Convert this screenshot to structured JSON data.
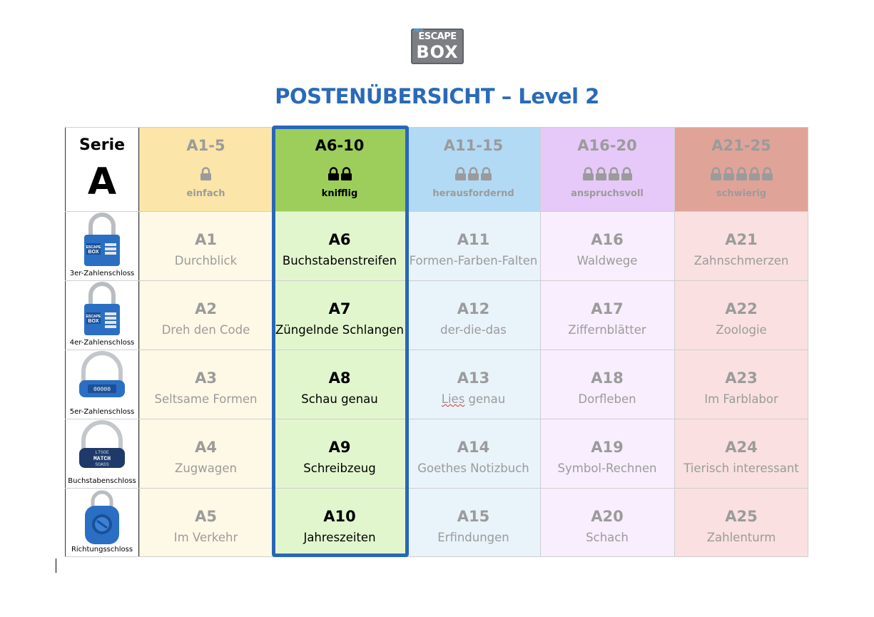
{
  "logo": {
    "my": "my",
    "top": "ESCAPE",
    "bottom": "BOX"
  },
  "title": "POSTENÜBERSICHT – Level 2",
  "serie": {
    "label": "Serie",
    "letter": "A"
  },
  "columns": [
    {
      "range": "A1-5",
      "locks": 1,
      "difficulty": "einfach",
      "header_color": "#fbe5a8",
      "body_color": "#fef8e6"
    },
    {
      "range": "A6-10",
      "locks": 2,
      "difficulty": "knifflig",
      "header_color": "#9dce5b",
      "body_color": "#e2f6ce"
    },
    {
      "range": "A11-15",
      "locks": 3,
      "difficulty": "herausfordernd",
      "header_color": "#b3daf5",
      "body_color": "#e9f3fa"
    },
    {
      "range": "A16-20",
      "locks": 4,
      "difficulty": "anspruchsvoll",
      "header_color": "#e6c9f8",
      "body_color": "#f8eefd"
    },
    {
      "range": "A21-25",
      "locks": 5,
      "difficulty": "schwierig",
      "header_color": "#e0a398",
      "body_color": "#fae0e0"
    }
  ],
  "lock_types": [
    {
      "label": "3er-Zahlenschloss",
      "icon": "combination-lock-3-icon",
      "badge": [
        "ESCAPE",
        "BOX"
      ]
    },
    {
      "label": "4er-Zahlenschloss",
      "icon": "combination-lock-4-icon",
      "badge": [
        "ESCAPE",
        "BOX"
      ]
    },
    {
      "label": "5er-Zahlenschloss",
      "icon": "combination-lock-5-icon",
      "digits": "00000"
    },
    {
      "label": "Buchstabenschloss",
      "icon": "letter-lock-icon",
      "rows": [
        "LTSOE",
        "MATCH",
        "SOASS"
      ]
    },
    {
      "label": "Richtungsschloss",
      "icon": "direction-lock-icon"
    }
  ],
  "rows": [
    [
      {
        "code": "A1",
        "name": "Durchblick"
      },
      {
        "code": "A6",
        "name": "Buchstabenstreifen"
      },
      {
        "code": "A11",
        "name": "Formen-Farben-Falten"
      },
      {
        "code": "A16",
        "name": "Waldwege"
      },
      {
        "code": "A21",
        "name": "Zahnschmerzen"
      }
    ],
    [
      {
        "code": "A2",
        "name": "Dreh den Code"
      },
      {
        "code": "A7",
        "name": "Züngelnde Schlangen"
      },
      {
        "code": "A12",
        "name": "der-die-das"
      },
      {
        "code": "A17",
        "name": "Ziffernblätter"
      },
      {
        "code": "A22",
        "name": "Zoologie"
      }
    ],
    [
      {
        "code": "A3",
        "name": "Seltsame Formen"
      },
      {
        "code": "A8",
        "name": "Schau genau"
      },
      {
        "code": "A13",
        "name": "Lies genau"
      },
      {
        "code": "A18",
        "name": "Dorfleben"
      },
      {
        "code": "A23",
        "name": "Im Farblabor"
      }
    ],
    [
      {
        "code": "A4",
        "name": "Zugwagen"
      },
      {
        "code": "A9",
        "name": "Schreibzeug"
      },
      {
        "code": "A14",
        "name": "Goethes Notizbuch"
      },
      {
        "code": "A19",
        "name": "Symbol-Rechnen"
      },
      {
        "code": "A24",
        "name": "Tierisch interessant"
      }
    ],
    [
      {
        "code": "A5",
        "name": "Im Verkehr"
      },
      {
        "code": "A10",
        "name": "Jahreszeiten"
      },
      {
        "code": "A15",
        "name": "Erfindungen"
      },
      {
        "code": "A20",
        "name": "Schach"
      },
      {
        "code": "A25",
        "name": "Zahlenturm"
      }
    ]
  ],
  "active_column": 1
}
